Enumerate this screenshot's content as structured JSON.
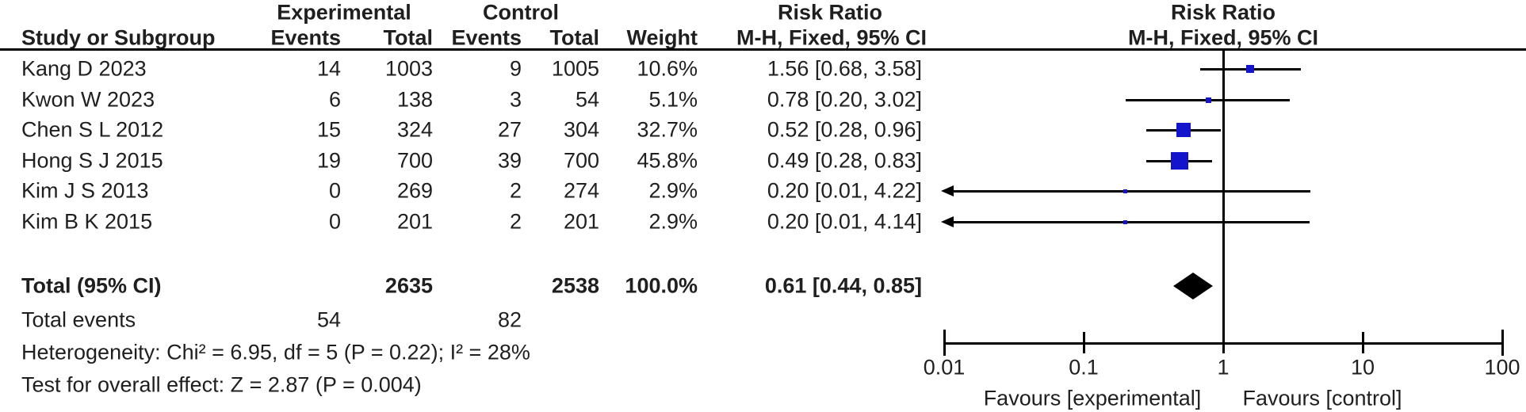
{
  "group_headers": {
    "experimental": "Experimental",
    "control": "Control",
    "risk_ratio_text": "Risk Ratio",
    "risk_ratio_plot": "Risk Ratio"
  },
  "columns": {
    "study": "Study or Subgroup",
    "events_exp": "Events",
    "total_exp": "Total",
    "events_ctl": "Events",
    "total_ctl": "Total",
    "weight": "Weight",
    "rr_text_col": "M-H, Fixed, 95% CI",
    "rr_plot_col": "M-H, Fixed, 95% CI"
  },
  "chart_data": {
    "type": "forest",
    "effect_measure": "Risk Ratio",
    "method": "M-H, Fixed, 95% CI",
    "scale": "log10",
    "axis": {
      "values": [
        0.01,
        0.1,
        1,
        10,
        100
      ],
      "labels": [
        "0.01",
        "0.1",
        "1",
        "10",
        "100"
      ],
      "null_line": 1
    },
    "marker_color": "#1414cc",
    "studies": [
      {
        "label": "Kang D 2023",
        "exp_events": 14,
        "exp_total": 1003,
        "ctl_events": 9,
        "ctl_total": 1005,
        "weight": "10.6%",
        "weight_pct": 10.6,
        "rr": 1.56,
        "ci_lo": 0.68,
        "ci_hi": 3.58,
        "rr_text": "1.56 [0.68, 3.58]",
        "arrow_left": false
      },
      {
        "label": "Kwon W 2023",
        "exp_events": 6,
        "exp_total": 138,
        "ctl_events": 3,
        "ctl_total": 54,
        "weight": "5.1%",
        "weight_pct": 5.1,
        "rr": 0.78,
        "ci_lo": 0.2,
        "ci_hi": 3.02,
        "rr_text": "0.78 [0.20, 3.02]",
        "arrow_left": false
      },
      {
        "label": "Chen S L 2012",
        "exp_events": 15,
        "exp_total": 324,
        "ctl_events": 27,
        "ctl_total": 304,
        "weight": "32.7%",
        "weight_pct": 32.7,
        "rr": 0.52,
        "ci_lo": 0.28,
        "ci_hi": 0.96,
        "rr_text": "0.52 [0.28, 0.96]",
        "arrow_left": false
      },
      {
        "label": "Hong S J 2015",
        "exp_events": 19,
        "exp_total": 700,
        "ctl_events": 39,
        "ctl_total": 700,
        "weight": "45.8%",
        "weight_pct": 45.8,
        "rr": 0.49,
        "ci_lo": 0.28,
        "ci_hi": 0.83,
        "rr_text": "0.49 [0.28, 0.83]",
        "arrow_left": false
      },
      {
        "label": "Kim J S 2013",
        "exp_events": 0,
        "exp_total": 269,
        "ctl_events": 2,
        "ctl_total": 274,
        "weight": "2.9%",
        "weight_pct": 2.9,
        "rr": 0.2,
        "ci_lo": 0.01,
        "ci_hi": 4.22,
        "rr_text": "0.20 [0.01, 4.22]",
        "arrow_left": true
      },
      {
        "label": "Kim B K 2015",
        "exp_events": 0,
        "exp_total": 201,
        "ctl_events": 2,
        "ctl_total": 201,
        "weight": "2.9%",
        "weight_pct": 2.9,
        "rr": 0.2,
        "ci_lo": 0.01,
        "ci_hi": 4.14,
        "rr_text": "0.20 [0.01, 4.14]",
        "arrow_left": true
      }
    ],
    "total": {
      "label": "Total (95% CI)",
      "exp_total": 2635,
      "ctl_total": 2538,
      "weight": "100.0%",
      "rr": 0.61,
      "ci_lo": 0.44,
      "ci_hi": 0.85,
      "rr_text": "0.61 [0.44, 0.85]"
    },
    "total_events": {
      "label": "Total events",
      "exp": 54,
      "ctl": 82
    },
    "heterogeneity": "Heterogeneity: Chi² = 6.95, df = 5 (P = 0.22); I² = 28%",
    "overall_effect": "Test for overall effect: Z = 2.87 (P = 0.004)",
    "favours_left": "Favours [experimental]",
    "favours_right": "Favours [control]"
  }
}
